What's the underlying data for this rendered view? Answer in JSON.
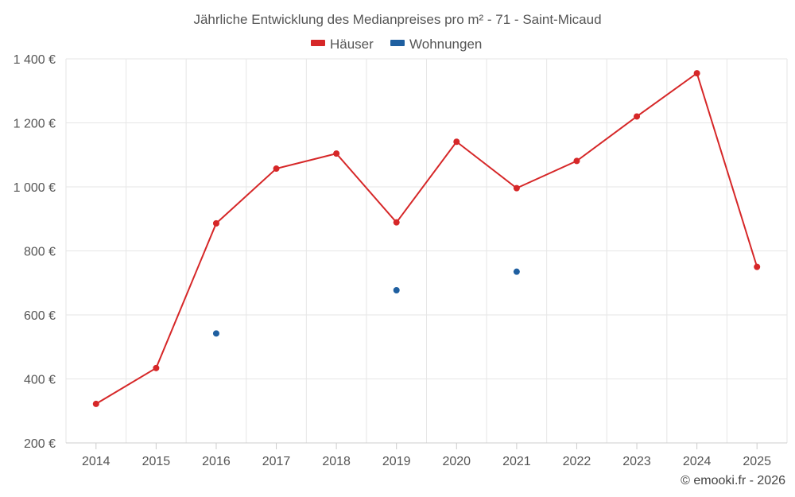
{
  "chart_data": {
    "type": "line",
    "title": "Jährliche Entwicklung des Medianpreises pro m² - 71 - Saint-Micaud",
    "categories": [
      "2014",
      "2015",
      "2016",
      "2017",
      "2018",
      "2019",
      "2020",
      "2021",
      "2022",
      "2023",
      "2024",
      "2025"
    ],
    "series": [
      {
        "name": "Häuser",
        "color": "#d62728",
        "style": "line",
        "values": [
          322,
          434,
          886,
          1057,
          1104,
          889,
          1141,
          996,
          1081,
          1220,
          1355,
          750
        ]
      },
      {
        "name": "Wohnungen",
        "color": "#1f5fa0",
        "style": "markers",
        "values": [
          null,
          null,
          542,
          null,
          null,
          677,
          null,
          735,
          null,
          null,
          null,
          null
        ]
      }
    ],
    "ylim": [
      200,
      1400
    ],
    "yticks": [
      200,
      400,
      600,
      800,
      1000,
      1200,
      1400
    ],
    "ytick_labels": [
      "200 €",
      "400 €",
      "600 €",
      "800 €",
      "1 000 €",
      "1 200 €",
      "1 400 €"
    ],
    "xlabel": "",
    "ylabel": "",
    "grid": true,
    "legend_position": "top-center"
  },
  "credit": "© emooki.fr - 2026"
}
